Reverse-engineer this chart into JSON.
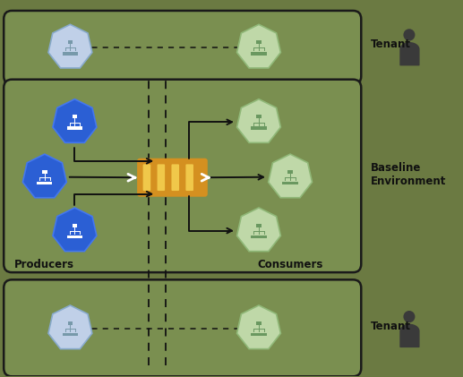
{
  "bg_color": "#6b7a42",
  "box_color": "#7a8f50",
  "box_edge_color": "#1a1a1a",
  "blue_hex_color": "#2b5fd4",
  "blue_hex_edge": "#4477ee",
  "light_blue_hex_color": "#c0d0e8",
  "light_blue_hex_edge": "#88aacc",
  "green_hex_color": "#bfd8a8",
  "green_hex_edge": "#90b878",
  "kafka_color": "#d49020",
  "kafka_stripe_color": "#f0c84a",
  "arrow_color": "#111111",
  "dashed_color": "#111111",
  "text_color": "#111111",
  "tenant_text": "Tenant",
  "baseline_text": "Baseline\nEnvironment",
  "producers_text": "Producers",
  "consumers_text": "Consumers",
  "label_fontsize": 8.5,
  "person_color": "#3a3a3a"
}
